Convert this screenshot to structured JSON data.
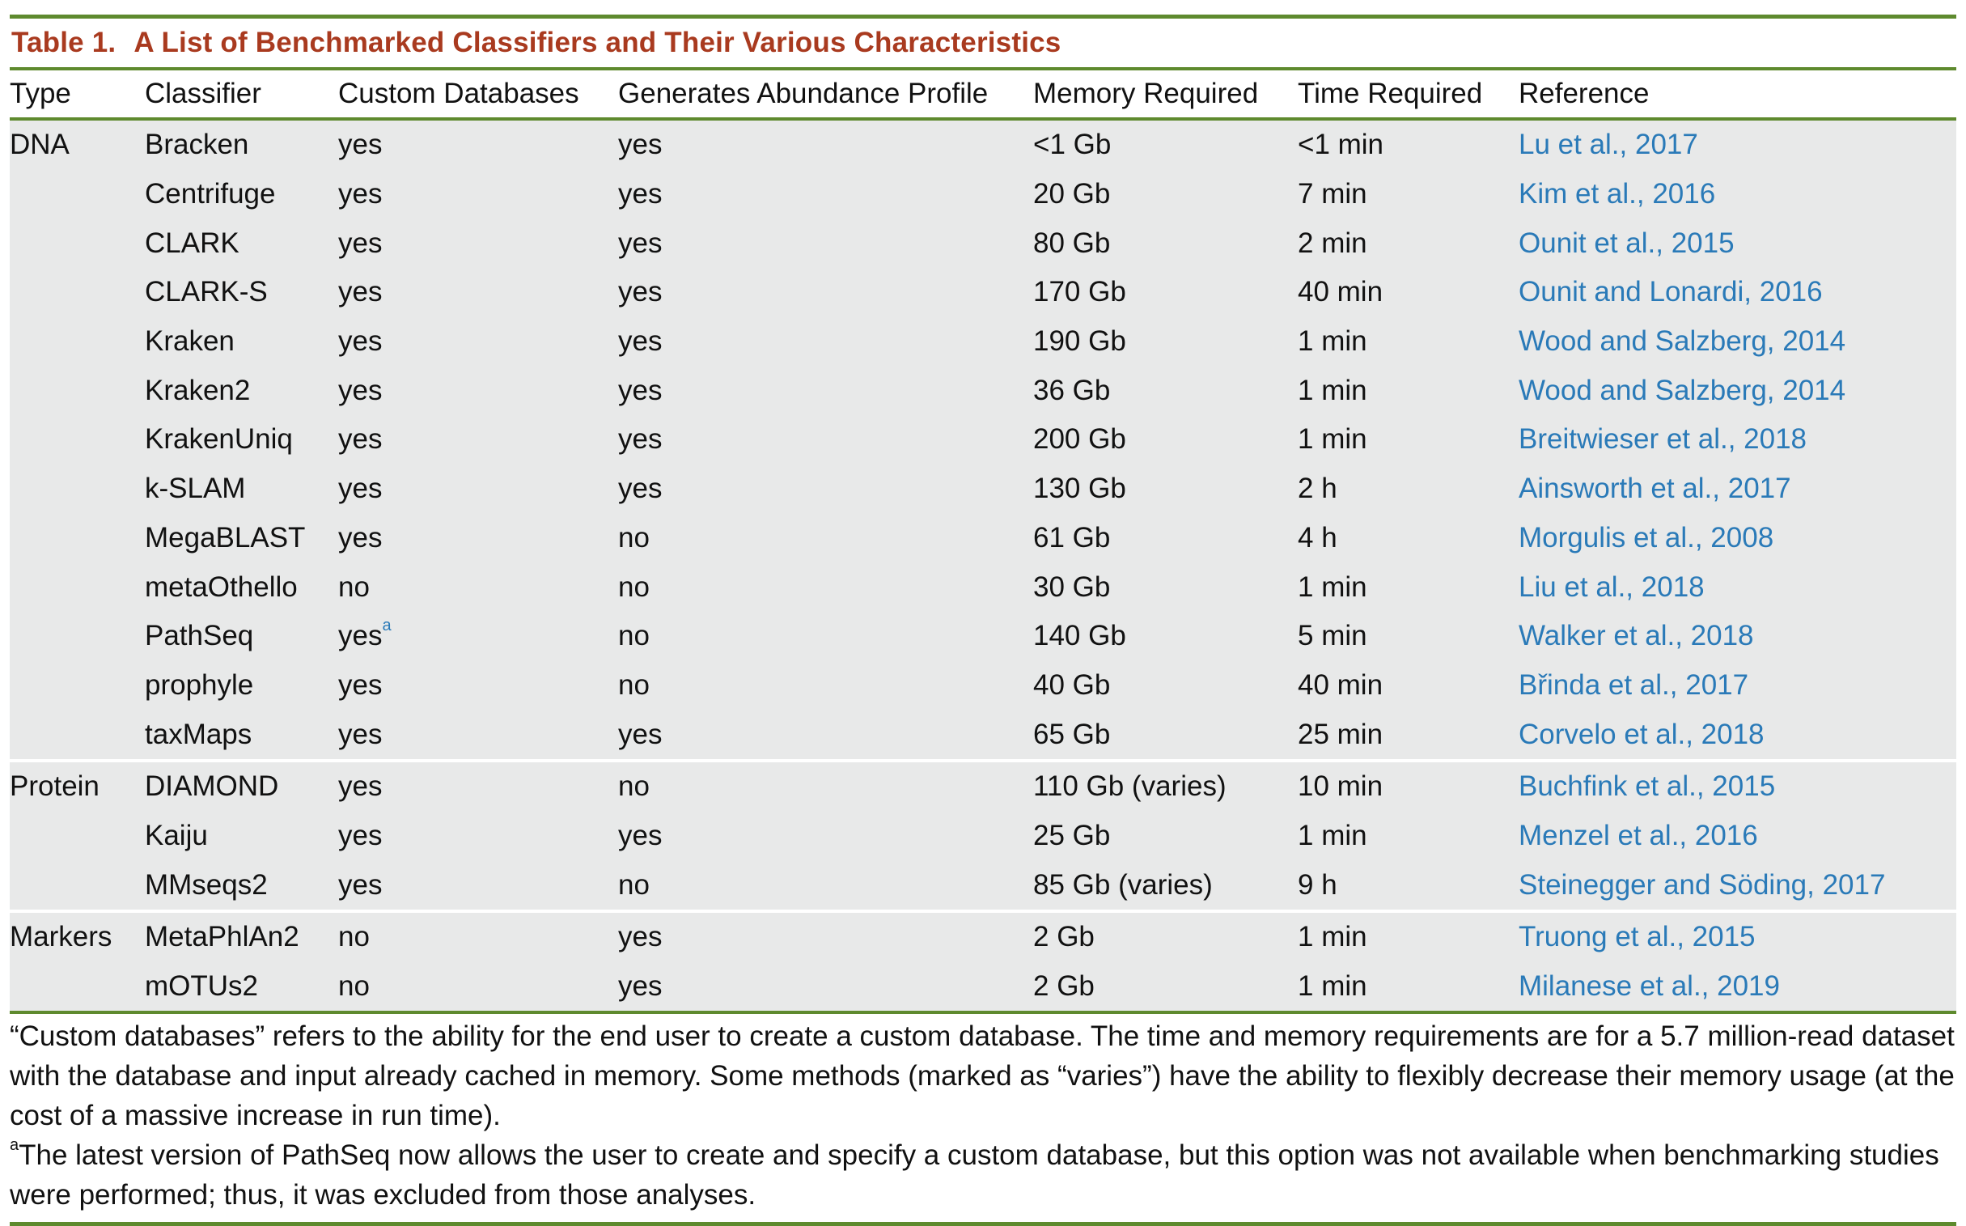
{
  "title": {
    "number": "Table 1.",
    "text": "A List of Benchmarked Classifiers and Their Various Characteristics"
  },
  "columns": [
    "Type",
    "Classifier",
    "Custom Databases",
    "Generates Abundance Profile",
    "Memory Required",
    "Time Required",
    "Reference"
  ],
  "rows": [
    {
      "type": "DNA",
      "classifier": "Bracken",
      "custom": "yes",
      "abundance": "yes",
      "memory": "<1 Gb",
      "time": "<1 min",
      "reference": "Lu et al., 2017"
    },
    {
      "type": "",
      "classifier": "Centrifuge",
      "custom": "yes",
      "abundance": "yes",
      "memory": "20 Gb",
      "time": "7 min",
      "reference": "Kim et al., 2016"
    },
    {
      "type": "",
      "classifier": "CLARK",
      "custom": "yes",
      "abundance": "yes",
      "memory": "80 Gb",
      "time": "2 min",
      "reference": "Ounit et al., 2015"
    },
    {
      "type": "",
      "classifier": "CLARK-S",
      "custom": "yes",
      "abundance": "yes",
      "memory": "170 Gb",
      "time": "40 min",
      "reference": "Ounit and Lonardi, 2016"
    },
    {
      "type": "",
      "classifier": "Kraken",
      "custom": "yes",
      "abundance": "yes",
      "memory": "190 Gb",
      "time": "1 min",
      "reference": "Wood and Salzberg, 2014"
    },
    {
      "type": "",
      "classifier": "Kraken2",
      "custom": "yes",
      "abundance": "yes",
      "memory": "36 Gb",
      "time": "1 min",
      "reference": "Wood and Salzberg, 2014"
    },
    {
      "type": "",
      "classifier": "KrakenUniq",
      "custom": "yes",
      "abundance": "yes",
      "memory": "200 Gb",
      "time": "1 min",
      "reference": "Breitwieser et al., 2018"
    },
    {
      "type": "",
      "classifier": "k-SLAM",
      "custom": "yes",
      "abundance": "yes",
      "memory": "130 Gb",
      "time": "2 h",
      "reference": "Ainsworth et al., 2017"
    },
    {
      "type": "",
      "classifier": "MegaBLAST",
      "custom": "yes",
      "abundance": "no",
      "memory": "61 Gb",
      "time": "4 h",
      "reference": "Morgulis et al., 2008"
    },
    {
      "type": "",
      "classifier": "metaOthello",
      "custom": "no",
      "abundance": "no",
      "memory": "30 Gb",
      "time": "1 min",
      "reference": "Liu et al., 2018"
    },
    {
      "type": "",
      "classifier": "PathSeq",
      "custom": "yes",
      "custom_sup": "a",
      "abundance": "no",
      "memory": "140 Gb",
      "time": "5 min",
      "reference": "Walker et al., 2018"
    },
    {
      "type": "",
      "classifier": "prophyle",
      "custom": "yes",
      "abundance": "no",
      "memory": "40 Gb",
      "time": "40 min",
      "reference": "Břinda et al., 2017"
    },
    {
      "type": "",
      "classifier": "taxMaps",
      "custom": "yes",
      "abundance": "yes",
      "memory": "65 Gb",
      "time": "25 min",
      "reference": "Corvelo et al., 2018"
    },
    {
      "type": "Protein",
      "classifier": "DIAMOND",
      "custom": "yes",
      "abundance": "no",
      "memory": "110 Gb (varies)",
      "time": "10 min",
      "reference": "Buchfink et al., 2015"
    },
    {
      "type": "",
      "classifier": "Kaiju",
      "custom": "yes",
      "abundance": "yes",
      "memory": "25 Gb",
      "time": "1 min",
      "reference": "Menzel et al., 2016"
    },
    {
      "type": "",
      "classifier": "MMseqs2",
      "custom": "yes",
      "abundance": "no",
      "memory": "85 Gb (varies)",
      "time": "9 h",
      "reference": "Steinegger and Söding, 2017"
    },
    {
      "type": "Markers",
      "classifier": "MetaPhlAn2",
      "custom": "no",
      "abundance": "yes",
      "memory": "2 Gb",
      "time": "1 min",
      "reference": "Truong et al., 2015"
    },
    {
      "type": "",
      "classifier": "mOTUs2",
      "custom": "no",
      "abundance": "yes",
      "memory": "2 Gb",
      "time": "1 min",
      "reference": "Milanese et al., 2019"
    }
  ],
  "notes": {
    "main": "“Custom databases” refers to the ability for the end user to create a custom database. The time and memory requirements are for a 5.7 million-read dataset with the database and input already cached in memory. Some methods (marked as “varies”) have the ability to flexibly decrease their memory usage (at the cost of a massive increase in run time).",
    "footnote_mark": "a",
    "footnote": "The latest version of PathSeq now allows the user to create and specify a custom database, but this option was not available when benchmarking studies were performed; thus, it was excluded from those analyses."
  },
  "colors": {
    "rule": "#5e8a2e",
    "title": "#a93a1f",
    "reference_link": "#2a7ab8",
    "row_background": "#e8e9e9"
  }
}
